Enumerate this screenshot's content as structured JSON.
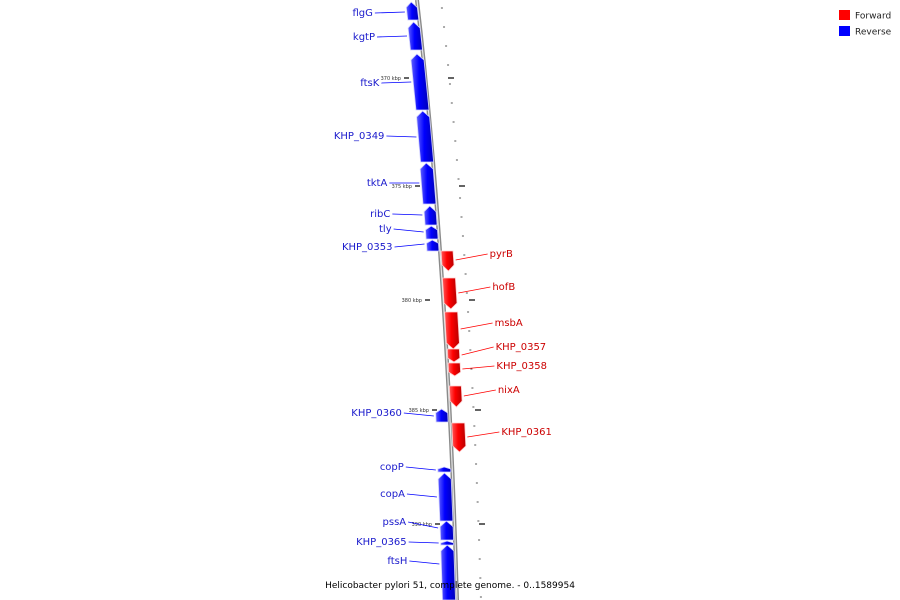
{
  "title": "Helicobacter pylori 51, complete genome. - 0..1589954",
  "legend": [
    {
      "label": "Forward",
      "color": "#ff0000"
    },
    {
      "label": "Reverse",
      "color": "#0000ff"
    }
  ],
  "strand_colors": {
    "forward": "#ff0000",
    "reverse": "#0000ff",
    "forward_label": "#cc0000",
    "reverse_label": "#1a1acc"
  },
  "ticks": [
    "370 kbp",
    "375 kbp",
    "380 kbp",
    "385 kbp",
    "390 kbp"
  ],
  "genes": [
    {
      "name": "flgG",
      "strand": "reverse"
    },
    {
      "name": "kgtP",
      "strand": "reverse"
    },
    {
      "name": "ftsK",
      "strand": "reverse"
    },
    {
      "name": "KHP_0349",
      "strand": "reverse"
    },
    {
      "name": "tktA",
      "strand": "reverse"
    },
    {
      "name": "ribC",
      "strand": "reverse"
    },
    {
      "name": "tly",
      "strand": "reverse"
    },
    {
      "name": "KHP_0353",
      "strand": "reverse"
    },
    {
      "name": "pyrB",
      "strand": "forward"
    },
    {
      "name": "hofB",
      "strand": "forward"
    },
    {
      "name": "msbA",
      "strand": "forward"
    },
    {
      "name": "KHP_0357",
      "strand": "forward"
    },
    {
      "name": "KHP_0358",
      "strand": "forward"
    },
    {
      "name": "nixA",
      "strand": "forward"
    },
    {
      "name": "KHP_0360",
      "strand": "reverse"
    },
    {
      "name": "KHP_0361",
      "strand": "forward"
    },
    {
      "name": "copP",
      "strand": "reverse"
    },
    {
      "name": "copA",
      "strand": "reverse"
    },
    {
      "name": "pssA",
      "strand": "reverse"
    },
    {
      "name": "KHP_0365",
      "strand": "reverse"
    },
    {
      "name": "ftsH",
      "strand": "reverse"
    }
  ]
}
